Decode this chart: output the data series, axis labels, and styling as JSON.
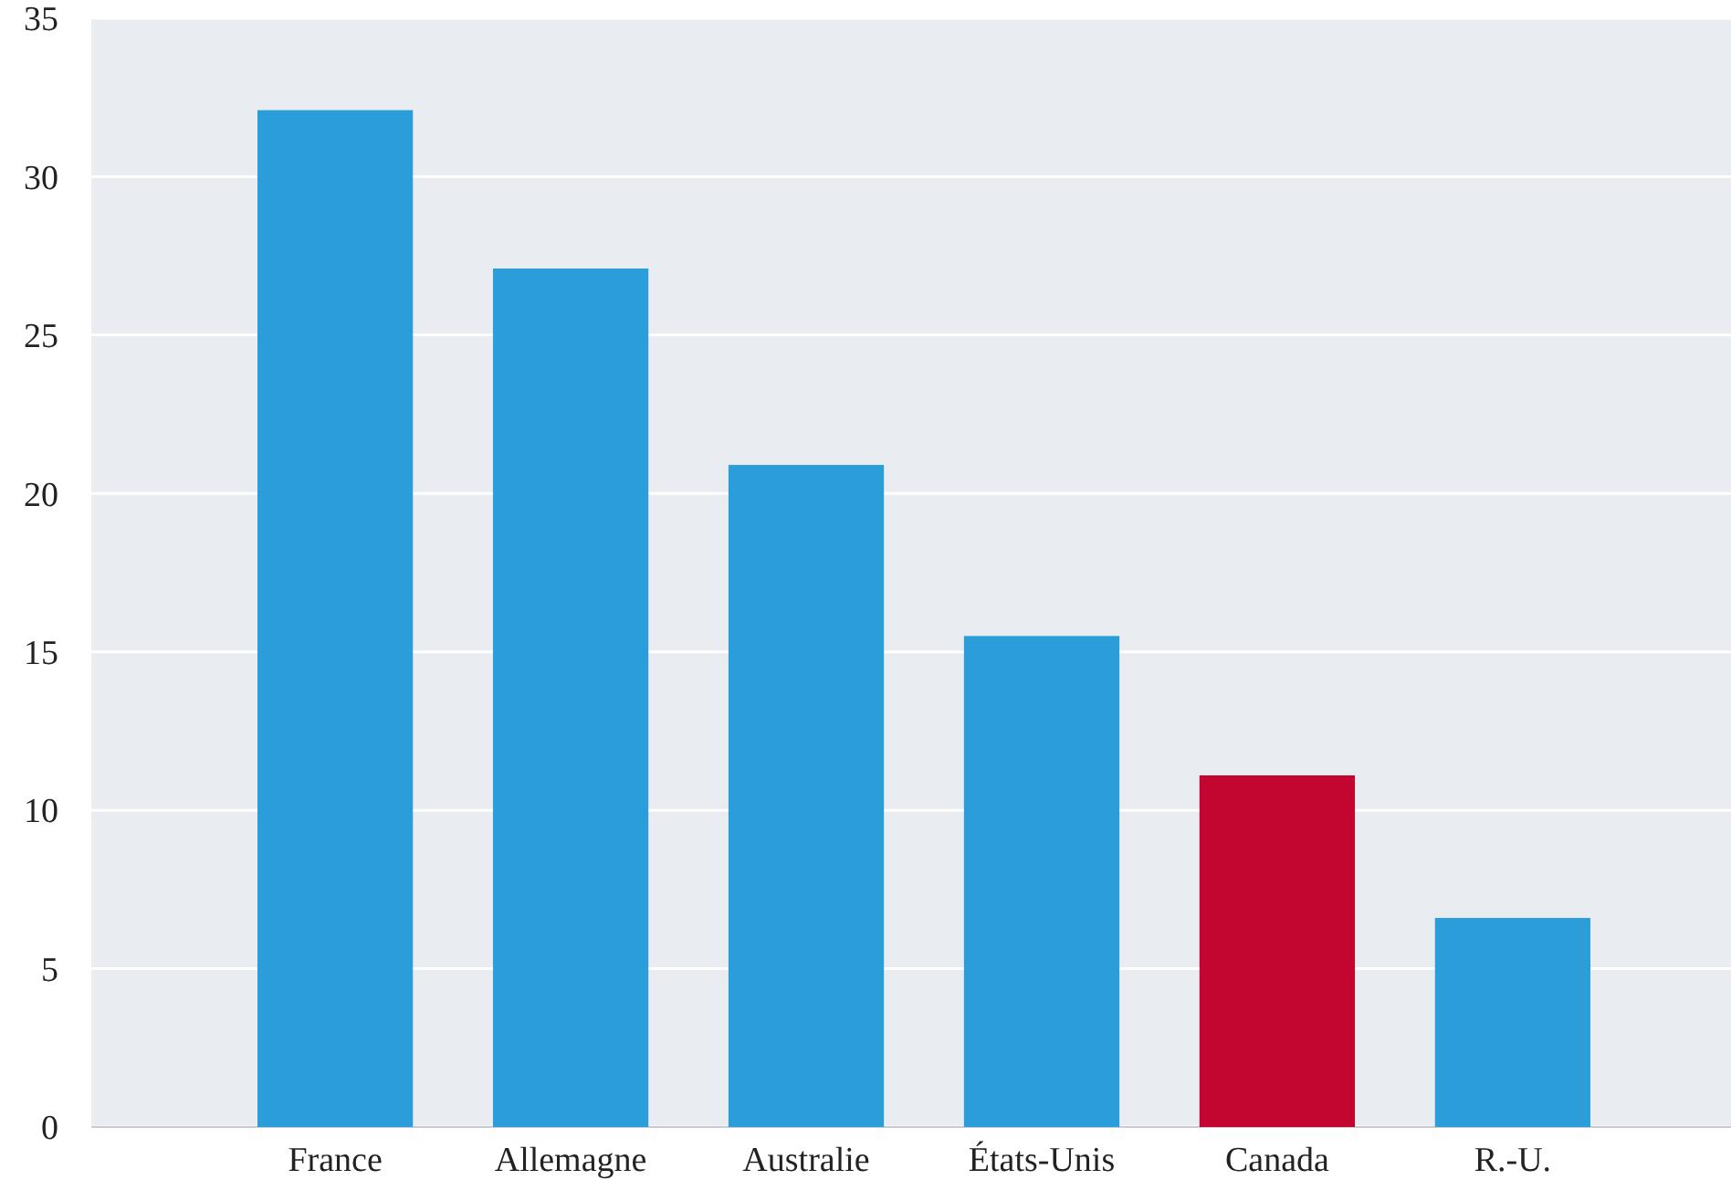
{
  "chart_data": {
    "type": "bar",
    "categories": [
      "France",
      "Allemagne",
      "Australie",
      "États-Unis",
      "Canada",
      "R.-U."
    ],
    "values": [
      32.1,
      27.1,
      20.9,
      15.5,
      11.1,
      6.6
    ],
    "colors": [
      "#2b9dd9",
      "#2b9dd9",
      "#2b9dd9",
      "#2b9dd9",
      "#c2062f",
      "#2b9dd9"
    ],
    "ylim": [
      0,
      35
    ],
    "yticks": [
      0,
      5,
      10,
      15,
      20,
      25,
      30,
      35
    ],
    "grid": "y"
  }
}
